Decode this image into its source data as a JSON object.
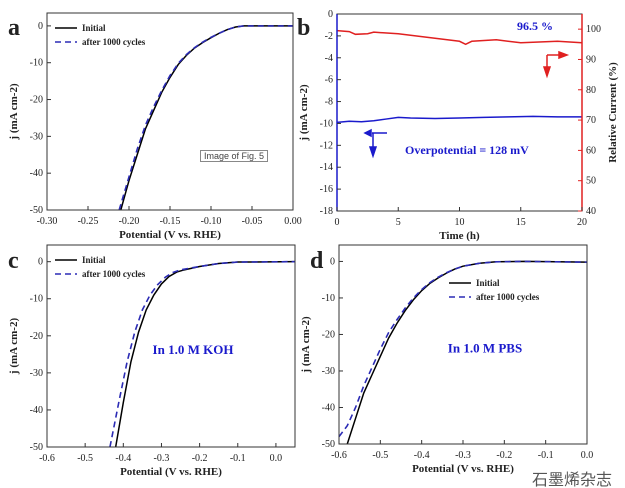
{
  "chart_data": [
    {
      "panel": "a",
      "type": "line",
      "xlabel": "Potential (V vs. RHE)",
      "ylabel": "j (mA cm-2)",
      "xlim": [
        -0.3,
        0.0
      ],
      "ylim": [
        -50,
        3.5
      ],
      "xticks": [
        -0.3,
        -0.25,
        -0.2,
        -0.15,
        -0.1,
        -0.05,
        0.0
      ],
      "yticks": [
        0,
        -10,
        -20,
        -30,
        -40,
        -50
      ],
      "legend": "top-left",
      "series": [
        {
          "name": "Initial",
          "color": "#000000",
          "dash": false,
          "x": [
            -0.21,
            -0.2,
            -0.19,
            -0.18,
            -0.17,
            -0.16,
            -0.15,
            -0.14,
            -0.13,
            -0.12,
            -0.11,
            -0.1,
            -0.09,
            -0.08,
            -0.07,
            -0.06,
            0
          ],
          "y": [
            -50,
            -42,
            -35,
            -28,
            -23,
            -18,
            -14,
            -10.5,
            -8,
            -6,
            -4.5,
            -3.2,
            -2,
            -1,
            -0.3,
            0,
            0
          ]
        },
        {
          "name": "after 1000 cycles",
          "color": "#2b2bb5",
          "dash": true,
          "x": [
            -0.212,
            -0.2,
            -0.19,
            -0.18,
            -0.17,
            -0.16,
            -0.15,
            -0.14,
            -0.13,
            -0.12,
            -0.11,
            -0.1,
            -0.09,
            -0.08,
            -0.07,
            -0.06,
            0
          ],
          "y": [
            -50,
            -41,
            -33.5,
            -27,
            -22,
            -17.5,
            -13.5,
            -10.2,
            -7.8,
            -5.9,
            -4.4,
            -3.1,
            -2,
            -1,
            -0.3,
            0,
            0
          ]
        }
      ]
    },
    {
      "panel": "b",
      "type": "line",
      "xlabel": "Time (h)",
      "ylabel": "j (mA cm-2)",
      "y2label": "Relative Current (%)",
      "xlim": [
        0,
        20
      ],
      "ylim": [
        -18,
        0
      ],
      "y2lim": [
        40,
        105
      ],
      "xticks": [
        0,
        5,
        10,
        15,
        20
      ],
      "yticks": [
        0,
        -2,
        -4,
        -6,
        -8,
        -10,
        -12,
        -14,
        -16,
        -18
      ],
      "y2ticks": [
        40,
        50,
        60,
        70,
        80,
        90,
        100
      ],
      "annotations": [
        "96.5 %",
        "Overpotential = 128 mV"
      ],
      "series": [
        {
          "axis": "left",
          "color": "#1a1acc",
          "x": [
            0,
            1,
            2,
            3,
            4,
            5,
            6,
            8,
            10,
            12,
            14,
            16,
            18,
            20
          ],
          "y": [
            -9.9,
            -9.8,
            -9.85,
            -9.75,
            -9.6,
            -9.45,
            -9.5,
            -9.55,
            -9.5,
            -9.45,
            -9.4,
            -9.35,
            -9.4,
            -9.4
          ]
        },
        {
          "axis": "right",
          "color": "#e02020",
          "x": [
            0,
            1,
            1.5,
            2.5,
            3,
            5,
            8,
            10,
            10.5,
            11,
            13,
            15,
            18,
            20
          ],
          "y": [
            99.5,
            99.2,
            98.3,
            98.5,
            99,
            98.5,
            97,
            96,
            95,
            96,
            96.5,
            95.5,
            96,
            95.5
          ]
        }
      ]
    },
    {
      "panel": "c",
      "type": "line",
      "xlabel": "Potential (V vs. RHE)",
      "ylabel": "j (mA cm-2)",
      "xlim": [
        -0.6,
        0.05
      ],
      "ylim": [
        -50,
        4.5
      ],
      "xticks": [
        -0.6,
        -0.5,
        -0.4,
        -0.3,
        -0.2,
        -0.1,
        0.0
      ],
      "yticks": [
        0,
        -10,
        -20,
        -30,
        -40,
        -50
      ],
      "legend": "top-left",
      "annotation": "In 1.0 M KOH",
      "series": [
        {
          "name": "Initial",
          "color": "#000000",
          "dash": false,
          "x": [
            -0.42,
            -0.4,
            -0.38,
            -0.36,
            -0.34,
            -0.32,
            -0.3,
            -0.28,
            -0.26,
            -0.24,
            -0.2,
            -0.15,
            -0.1,
            0.05
          ],
          "y": [
            -50,
            -38,
            -27,
            -19,
            -13,
            -9,
            -6,
            -4,
            -2.8,
            -2.2,
            -1.3,
            -0.5,
            -0.1,
            0
          ]
        },
        {
          "name": "after 1000 cycles",
          "color": "#2b2bb5",
          "dash": true,
          "x": [
            -0.435,
            -0.41,
            -0.39,
            -0.37,
            -0.35,
            -0.33,
            -0.31,
            -0.29,
            -0.27,
            -0.25,
            -0.2,
            -0.15,
            -0.1,
            0.05
          ],
          "y": [
            -50,
            -37,
            -27,
            -19,
            -13,
            -9,
            -6.2,
            -4.2,
            -2.9,
            -2.2,
            -1.3,
            -0.5,
            -0.1,
            0
          ]
        }
      ]
    },
    {
      "panel": "d",
      "type": "line",
      "xlabel": "Potential (V vs. RHE)",
      "ylabel": "j (mA cm-2)",
      "xlim": [
        -0.6,
        0.0
      ],
      "ylim": [
        -50,
        4.5
      ],
      "xticks": [
        -0.6,
        -0.5,
        -0.4,
        -0.3,
        -0.2,
        -0.1,
        0.0
      ],
      "yticks": [
        0,
        -10,
        -20,
        -30,
        -40,
        -50
      ],
      "legend": "upper-right",
      "annotation": "In 1.0 M PBS",
      "series": [
        {
          "name": "Initial",
          "color": "#000000",
          "dash": false,
          "x": [
            -0.58,
            -0.56,
            -0.54,
            -0.52,
            -0.5,
            -0.48,
            -0.46,
            -0.44,
            -0.42,
            -0.4,
            -0.38,
            -0.36,
            -0.34,
            -0.32,
            -0.3,
            -0.26,
            -0.22,
            -0.15,
            0
          ],
          "y": [
            -50,
            -43,
            -36,
            -31,
            -26,
            -21,
            -17,
            -13.5,
            -10.5,
            -8,
            -6,
            -4.5,
            -3.2,
            -2.1,
            -1.3,
            -0.5,
            -0.1,
            0,
            -0.2
          ]
        },
        {
          "name": "after 1000 cycles",
          "color": "#2b2bb5",
          "dash": true,
          "x": [
            -0.6,
            -0.58,
            -0.56,
            -0.54,
            -0.52,
            -0.5,
            -0.48,
            -0.46,
            -0.44,
            -0.42,
            -0.4,
            -0.38,
            -0.36,
            -0.34,
            -0.32,
            -0.3,
            -0.26,
            -0.22,
            -0.15,
            0
          ],
          "y": [
            -48,
            -45,
            -40,
            -34,
            -29,
            -24,
            -19.5,
            -16,
            -12.8,
            -10,
            -7.7,
            -5.8,
            -4.3,
            -3.1,
            -2.1,
            -1.3,
            -0.5,
            -0.1,
            0,
            -0.2
          ]
        }
      ]
    }
  ],
  "tooltip": "Image of Fig. 5",
  "watermark": "石墨烯杂志"
}
